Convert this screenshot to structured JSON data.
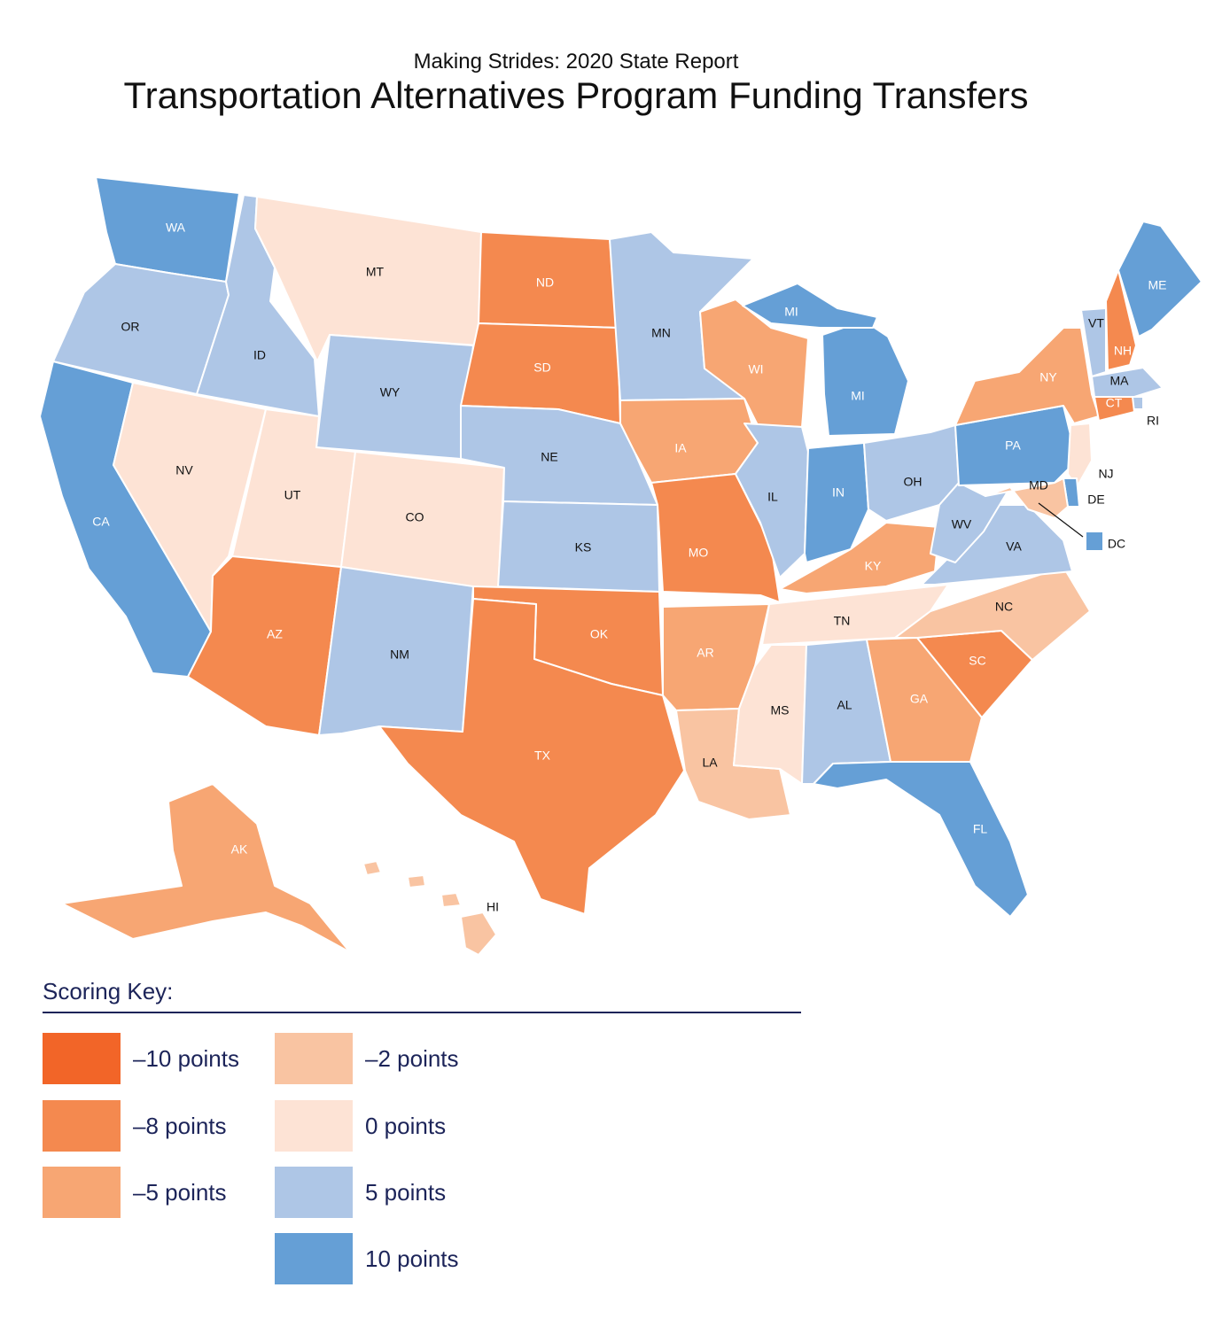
{
  "header": {
    "subtitle": "Making Strides:  2020 State Report",
    "title": "Transportation Alternatives Program Funding Transfers"
  },
  "legend": {
    "title": "Scoring Key:",
    "items": [
      {
        "label": "–10 points",
        "score": -10,
        "color": "#f26528"
      },
      {
        "label": "–8 points",
        "score": -8,
        "color": "#f4894f"
      },
      {
        "label": "–5 points",
        "score": -5,
        "color": "#f7a673"
      },
      {
        "label": "–2 points",
        "score": -2,
        "color": "#f9c4a2"
      },
      {
        "label": "0 points",
        "score": 0,
        "color": "#fde3d5"
      },
      {
        "label": "5 points",
        "score": 5,
        "color": "#aec6e6"
      },
      {
        "label": "10 points",
        "score": 10,
        "color": "#659fd6"
      }
    ]
  },
  "states": [
    {
      "abbr": "WA",
      "score": 10
    },
    {
      "abbr": "OR",
      "score": 5
    },
    {
      "abbr": "CA",
      "score": 10
    },
    {
      "abbr": "ID",
      "score": 5
    },
    {
      "abbr": "NV",
      "score": 0
    },
    {
      "abbr": "MT",
      "score": 0
    },
    {
      "abbr": "WY",
      "score": 5
    },
    {
      "abbr": "UT",
      "score": 0
    },
    {
      "abbr": "CO",
      "score": 0
    },
    {
      "abbr": "AZ",
      "score": -8
    },
    {
      "abbr": "NM",
      "score": 5
    },
    {
      "abbr": "ND",
      "score": -8
    },
    {
      "abbr": "SD",
      "score": -8
    },
    {
      "abbr": "NE",
      "score": 5
    },
    {
      "abbr": "KS",
      "score": 5
    },
    {
      "abbr": "OK",
      "score": -8
    },
    {
      "abbr": "TX",
      "score": -8
    },
    {
      "abbr": "MN",
      "score": 5
    },
    {
      "abbr": "IA",
      "score": -5
    },
    {
      "abbr": "MO",
      "score": -8
    },
    {
      "abbr": "AR",
      "score": -5
    },
    {
      "abbr": "LA",
      "score": -2
    },
    {
      "abbr": "WI",
      "score": -5
    },
    {
      "abbr": "IL",
      "score": 5
    },
    {
      "abbr": "MI",
      "score": 10
    },
    {
      "abbr": "IN",
      "score": 10
    },
    {
      "abbr": "OH",
      "score": 5
    },
    {
      "abbr": "KY",
      "score": -5
    },
    {
      "abbr": "TN",
      "score": 0
    },
    {
      "abbr": "MS",
      "score": 0
    },
    {
      "abbr": "AL",
      "score": 5
    },
    {
      "abbr": "GA",
      "score": -5
    },
    {
      "abbr": "FL",
      "score": 10
    },
    {
      "abbr": "SC",
      "score": -8
    },
    {
      "abbr": "NC",
      "score": -2
    },
    {
      "abbr": "VA",
      "score": 5
    },
    {
      "abbr": "WV",
      "score": 5
    },
    {
      "abbr": "PA",
      "score": 10
    },
    {
      "abbr": "NY",
      "score": -5
    },
    {
      "abbr": "VT",
      "score": 5
    },
    {
      "abbr": "NH",
      "score": -8
    },
    {
      "abbr": "ME",
      "score": 10
    },
    {
      "abbr": "MA",
      "score": 5
    },
    {
      "abbr": "RI",
      "score": 5
    },
    {
      "abbr": "CT",
      "score": -8
    },
    {
      "abbr": "NJ",
      "score": 0
    },
    {
      "abbr": "DE",
      "score": 10
    },
    {
      "abbr": "MD",
      "score": -2
    },
    {
      "abbr": "DC",
      "score": 10
    },
    {
      "abbr": "AK",
      "score": -5
    },
    {
      "abbr": "HI",
      "score": -2
    }
  ]
}
